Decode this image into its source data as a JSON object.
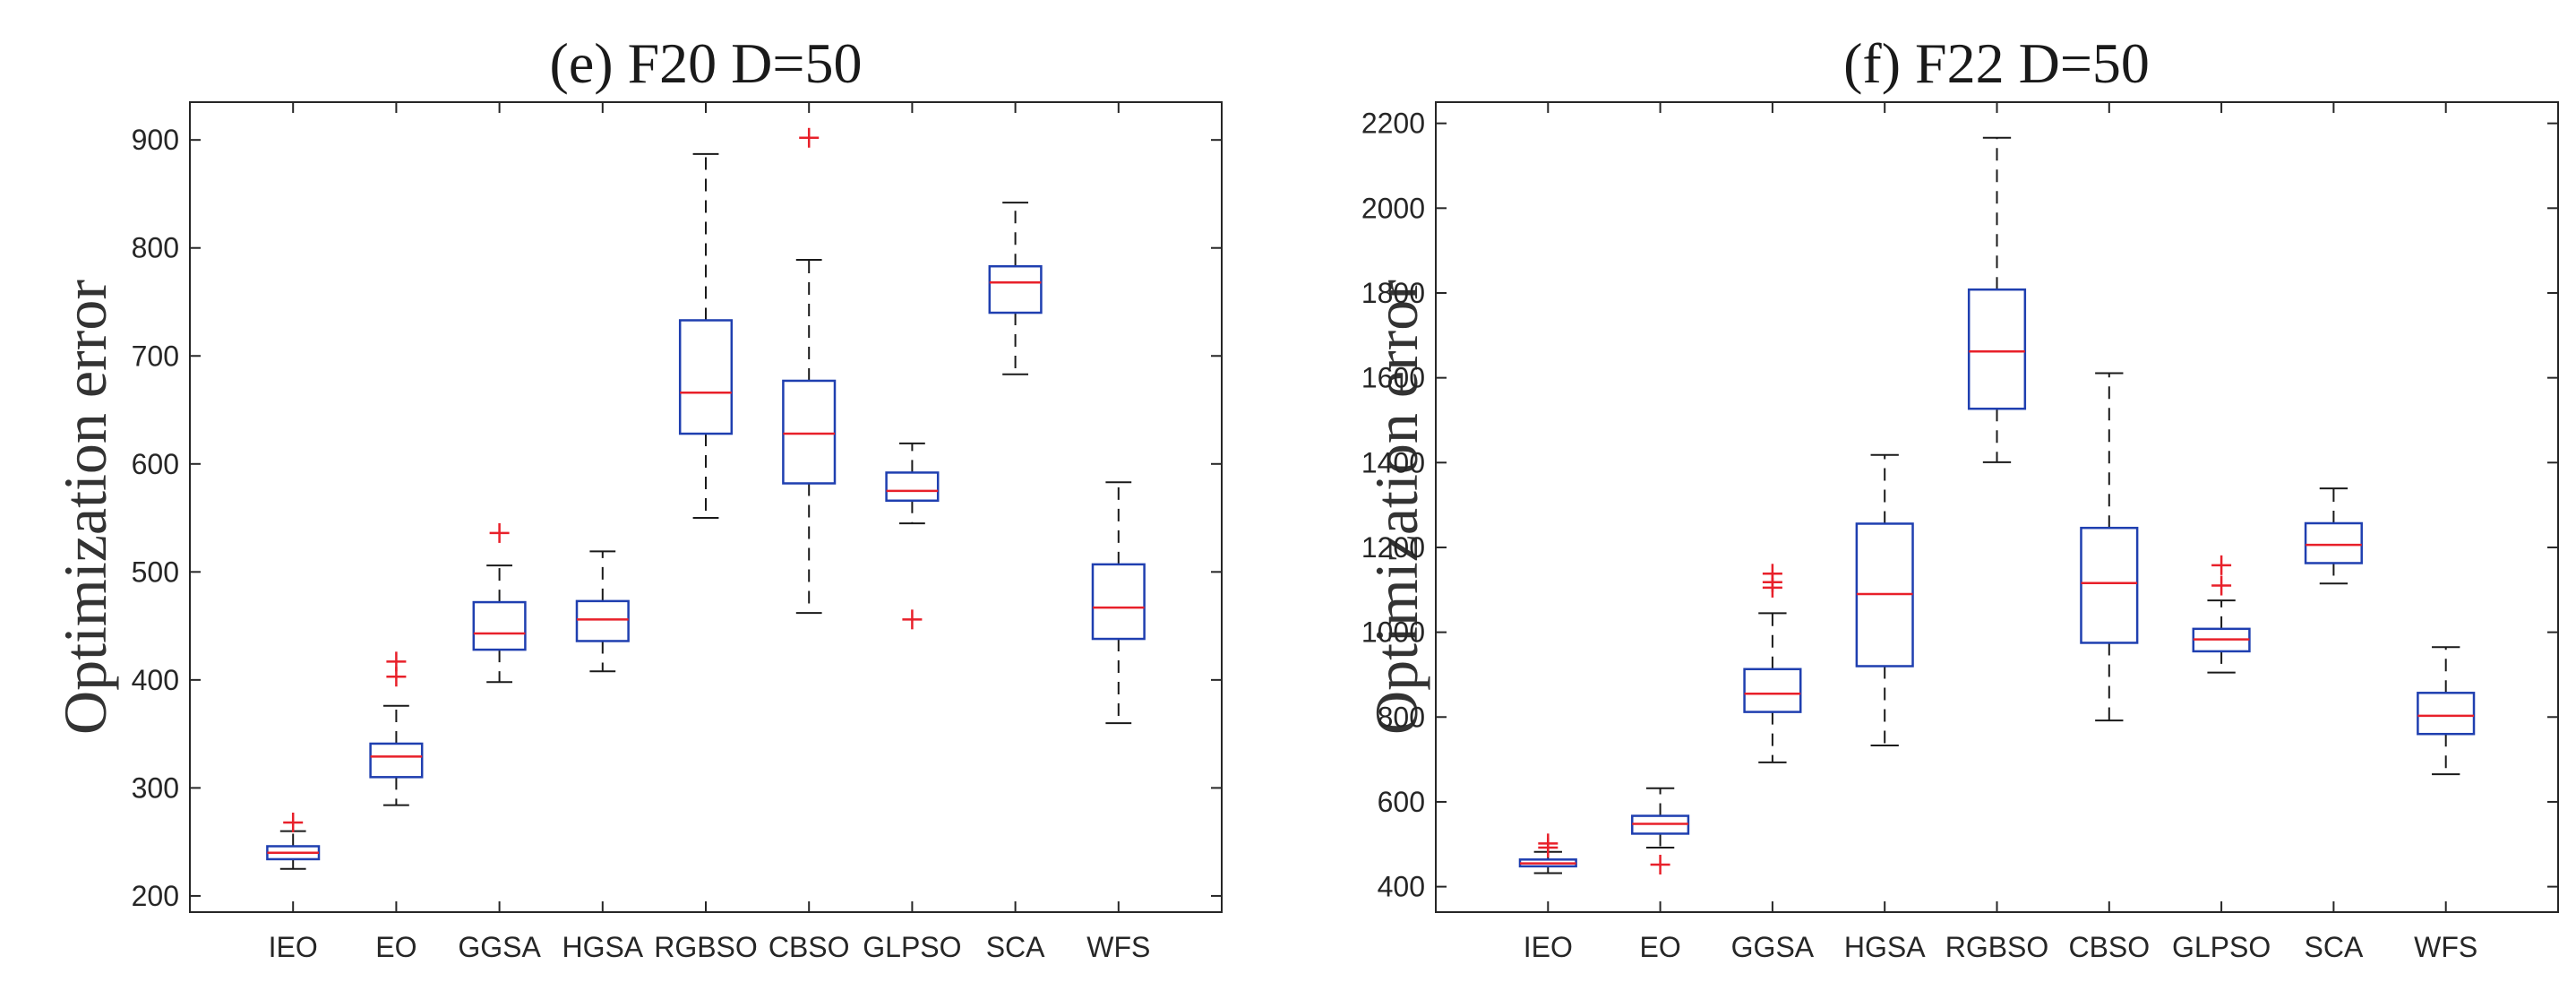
{
  "chart_data": [
    {
      "type": "boxplot",
      "title": "(e)  F20 D=50",
      "ylabel": "Optimization error",
      "xlabel": "",
      "categories": [
        "IEO",
        "EO",
        "GGSA",
        "HGSA",
        "RGBSO",
        "CBSO",
        "GLPSO",
        "SCA",
        "WFS"
      ],
      "ylim": [
        185,
        935
      ],
      "yticks": [
        200,
        300,
        400,
        500,
        600,
        700,
        800,
        900
      ],
      "grid": false,
      "boxes": [
        {
          "name": "IEO",
          "whislo": 225,
          "q1": 234,
          "median": 240,
          "q3": 246,
          "whishi": 260,
          "fliers": [
            268
          ]
        },
        {
          "name": "EO",
          "whislo": 284,
          "q1": 310,
          "median": 329,
          "q3": 341,
          "whishi": 376,
          "fliers": [
            403,
            417
          ]
        },
        {
          "name": "GGSA",
          "whislo": 398,
          "q1": 428,
          "median": 443,
          "q3": 472,
          "whishi": 506,
          "fliers": [
            536
          ]
        },
        {
          "name": "HGSA",
          "whislo": 408,
          "q1": 436,
          "median": 456,
          "q3": 473,
          "whishi": 519,
          "fliers": []
        },
        {
          "name": "RGBSO",
          "whislo": 550,
          "q1": 628,
          "median": 666,
          "q3": 733,
          "whishi": 887,
          "fliers": []
        },
        {
          "name": "CBSO",
          "whislo": 462,
          "q1": 582,
          "median": 628,
          "q3": 677,
          "whishi": 789,
          "fliers": [
            902
          ]
        },
        {
          "name": "GLPSO",
          "whislo": 545,
          "q1": 566,
          "median": 575,
          "q3": 592,
          "whishi": 619,
          "fliers": [
            456
          ]
        },
        {
          "name": "SCA",
          "whislo": 683,
          "q1": 740,
          "median": 768,
          "q3": 783,
          "whishi": 842,
          "fliers": []
        },
        {
          "name": "WFS",
          "whislo": 360,
          "q1": 438,
          "median": 467,
          "q3": 507,
          "whishi": 583,
          "fliers": []
        }
      ]
    },
    {
      "type": "boxplot",
      "title": "(f)  F22 D=50",
      "ylabel": "Optimization error",
      "xlabel": "",
      "categories": [
        "IEO",
        "EO",
        "GGSA",
        "HGSA",
        "RGBSO",
        "CBSO",
        "GLPSO",
        "SCA",
        "WFS"
      ],
      "ylim": [
        340,
        2250
      ],
      "yticks": [
        400,
        600,
        800,
        1000,
        1200,
        1400,
        1600,
        1800,
        2000,
        2200
      ],
      "grid": false,
      "boxes": [
        {
          "name": "IEO",
          "whislo": 432,
          "q1": 448,
          "median": 455,
          "q3": 464,
          "whishi": 482,
          "fliers": [
            492,
            502
          ]
        },
        {
          "name": "EO",
          "whislo": 492,
          "q1": 525,
          "median": 548,
          "q3": 567,
          "whishi": 632,
          "fliers": [
            452
          ]
        },
        {
          "name": "GGSA",
          "whislo": 693,
          "q1": 812,
          "median": 855,
          "q3": 913,
          "whishi": 1045,
          "fliers": [
            1105,
            1118,
            1138
          ]
        },
        {
          "name": "HGSA",
          "whislo": 733,
          "q1": 920,
          "median": 1090,
          "q3": 1256,
          "whishi": 1418,
          "fliers": []
        },
        {
          "name": "RGBSO",
          "whislo": 1401,
          "q1": 1527,
          "median": 1662,
          "q3": 1808,
          "whishi": 2166,
          "fliers": []
        },
        {
          "name": "CBSO",
          "whislo": 792,
          "q1": 975,
          "median": 1116,
          "q3": 1246,
          "whishi": 1611,
          "fliers": []
        },
        {
          "name": "GLPSO",
          "whislo": 905,
          "q1": 955,
          "median": 983,
          "q3": 1008,
          "whishi": 1075,
          "fliers": [
            1110,
            1158
          ]
        },
        {
          "name": "SCA",
          "whislo": 1115,
          "q1": 1163,
          "median": 1206,
          "q3": 1257,
          "whishi": 1339,
          "fliers": []
        },
        {
          "name": "WFS",
          "whislo": 665,
          "q1": 760,
          "median": 803,
          "q3": 857,
          "whishi": 965,
          "fliers": []
        }
      ]
    }
  ],
  "colors": {
    "box": "#1f3fb0",
    "median": "#e8202a",
    "outlier": "#e8202a",
    "whisker": "#1a1a1a",
    "axis": "#262626"
  }
}
